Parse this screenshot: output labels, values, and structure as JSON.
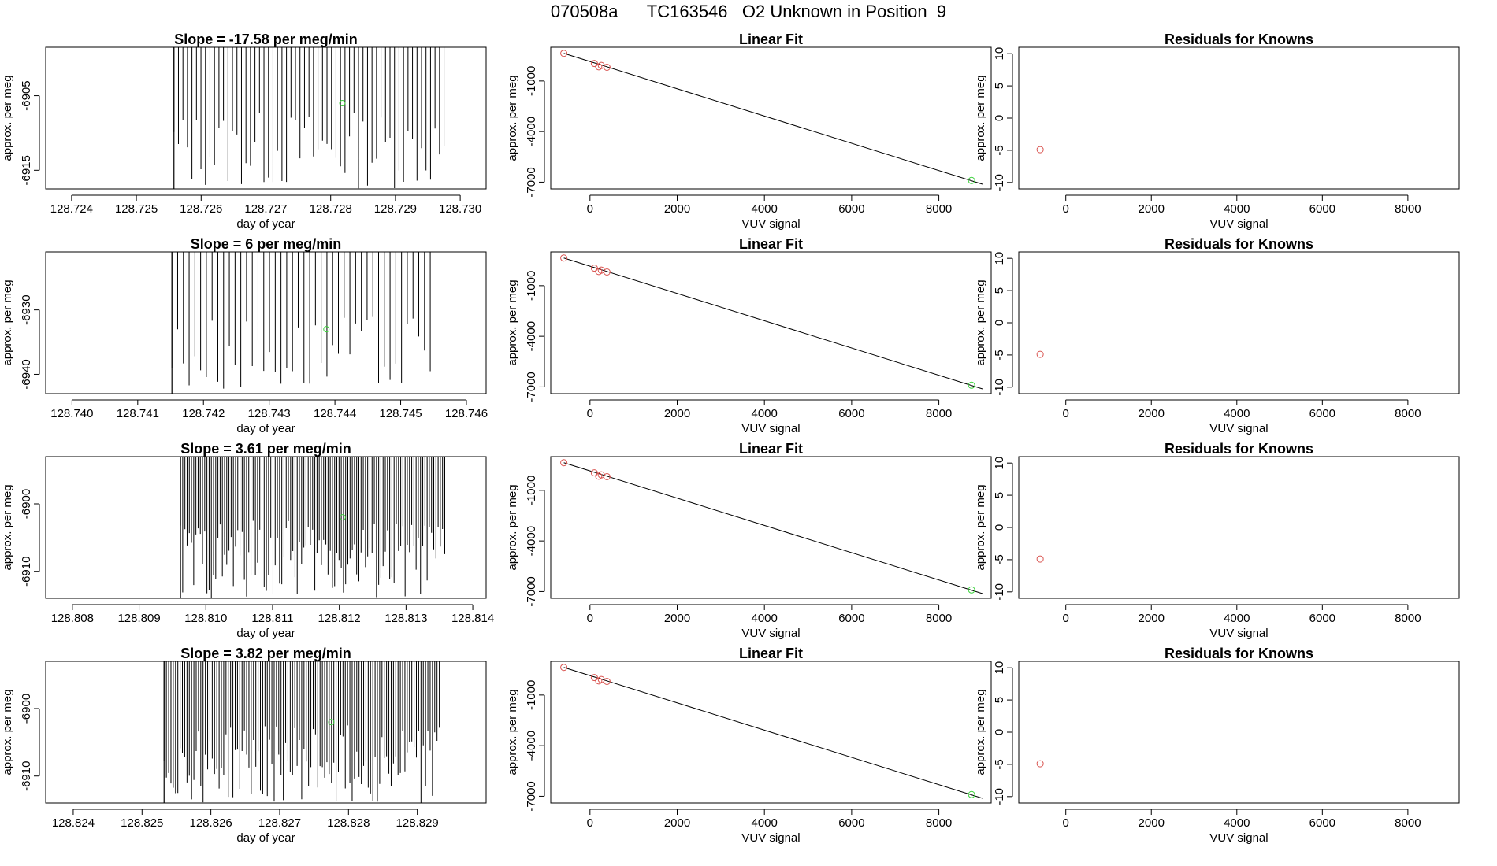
{
  "page": {
    "title": "070508a      TC163546   O2 Unknown in Position  9"
  },
  "colors": {
    "axis": "#000000",
    "trace": "#000000",
    "known_points": "#d9534f",
    "unknown_point": "#3cd23c"
  },
  "chart_data": [
    {
      "type": "line",
      "row": 0,
      "col": 0,
      "title": "Slope =  -17.58  per meg/min",
      "xlabel": "day of year",
      "ylabel": "approx. per meg",
      "xlim": [
        128.7236,
        128.7304
      ],
      "ylim": [
        -6917.5,
        -6898.5
      ],
      "xticks": [
        128.724,
        128.725,
        128.726,
        128.727,
        128.728,
        128.729,
        128.73
      ],
      "xtick_labels": [
        "128.724",
        "128.725",
        "128.726",
        "128.727",
        "128.728",
        "128.729",
        "128.730"
      ],
      "yticks": [
        -6905,
        -6915
      ],
      "ytick_labels": [
        "-6905",
        "-6915"
      ],
      "trace": {
        "x_start": 128.72558,
        "x_end": 128.72975,
        "segments": [
          [
            128.72558,
            128.72558
          ],
          [
            128.72563,
            128.72563
          ],
          [
            128.72608,
            128.72608
          ],
          [
            128.72622,
            128.72622
          ],
          [
            128.72636,
            128.72636
          ],
          [
            128.72652,
            128.72652
          ],
          [
            128.72666,
            128.72666
          ],
          [
            128.72681,
            128.72681
          ],
          [
            128.72695,
            128.72695
          ],
          [
            128.7271,
            128.7271
          ],
          [
            128.72725,
            128.72725
          ],
          [
            128.7274,
            128.7274
          ],
          [
            128.72754,
            128.72754
          ],
          [
            128.72768,
            128.72768
          ],
          [
            128.72783,
            128.72783
          ],
          [
            128.72797,
            128.72797
          ],
          [
            128.72812,
            128.72812
          ],
          [
            128.72827,
            128.72827
          ],
          [
            128.72841,
            128.72841
          ],
          [
            128.72856,
            128.72856
          ],
          [
            128.7287,
            128.7287
          ],
          [
            128.72885,
            128.72885
          ],
          [
            128.729,
            128.729
          ],
          [
            128.72914,
            128.72914
          ],
          [
            128.72929,
            128.72929
          ],
          [
            128.72944,
            128.72944
          ],
          [
            128.72958,
            128.72958
          ],
          [
            128.72972,
            128.72972
          ]
        ]
      },
      "unknown_point": {
        "x": 128.72818,
        "y": -6906.0
      }
    },
    {
      "type": "scatter",
      "row": 0,
      "col": 1,
      "title": "Linear Fit",
      "xlabel": "VUV signal",
      "ylabel": "approx. per meg",
      "xlim": [
        -900,
        9200
      ],
      "ylim": [
        -7400,
        1000
      ],
      "xticks": [
        0,
        2000,
        4000,
        6000,
        8000
      ],
      "xtick_labels": [
        "0",
        "2000",
        "4000",
        "6000",
        "8000"
      ],
      "yticks": [
        -1000,
        -4000,
        -7000
      ],
      "ytick_labels": [
        "-1000",
        "-4000",
        "-7000"
      ],
      "fit_line": {
        "x": [
          -600,
          9000
        ],
        "y": [
          640,
          -7120
        ]
      },
      "known_points": {
        "x": [
          -600,
          100,
          200,
          260,
          390
        ],
        "y": [
          640,
          40,
          -160,
          -80,
          -190
        ]
      },
      "unknown_point": {
        "x": 8750,
        "y": -6900
      }
    },
    {
      "type": "scatter",
      "row": 0,
      "col": 2,
      "title": "Residuals for Knowns",
      "xlabel": "VUV signal",
      "ylabel": "approx. per meg",
      "xlim": [
        -1100,
        9200
      ],
      "ylim": [
        -11,
        11
      ],
      "xticks": [
        0,
        2000,
        4000,
        6000,
        8000
      ],
      "xtick_labels": [
        "0",
        "2000",
        "4000",
        "6000",
        "8000"
      ],
      "yticks": [
        10,
        5,
        0,
        -5,
        -10
      ],
      "ytick_labels": [
        "10",
        "5",
        "0",
        "-5",
        "-10"
      ],
      "known_points": {
        "x": [
          -600
        ],
        "y": [
          -4.9
        ]
      }
    },
    {
      "type": "line",
      "row": 1,
      "col": 0,
      "title": "Slope =  6  per meg/min",
      "xlabel": "day of year",
      "ylabel": "approx. per meg",
      "xlim": [
        128.7396,
        128.7463
      ],
      "ylim": [
        -6943,
        -6921
      ],
      "xticks": [
        128.74,
        128.741,
        128.742,
        128.743,
        128.744,
        128.745,
        128.746
      ],
      "xtick_labels": [
        "128.740",
        "128.741",
        "128.742",
        "128.743",
        "128.744",
        "128.745",
        "128.746"
      ],
      "yticks": [
        -6930,
        -6940
      ],
      "ytick_labels": [
        "-6930",
        "-6940"
      ],
      "trace": {
        "x_start": 128.74152,
        "x_end": 128.74545
      },
      "unknown_point": {
        "x": 128.74387,
        "y": -6933.0
      }
    },
    {
      "type": "scatter",
      "row": 1,
      "col": 1,
      "title": "Linear Fit",
      "xlabel": "VUV signal",
      "ylabel": "approx. per meg",
      "xlim": [
        -900,
        9200
      ],
      "ylim": [
        -7400,
        1000
      ],
      "xticks": [
        0,
        2000,
        4000,
        6000,
        8000
      ],
      "xtick_labels": [
        "0",
        "2000",
        "4000",
        "6000",
        "8000"
      ],
      "yticks": [
        -1000,
        -4000,
        -7000
      ],
      "ytick_labels": [
        "-1000",
        "-4000",
        "-7000"
      ],
      "fit_line": {
        "x": [
          -600,
          9000
        ],
        "y": [
          640,
          -7120
        ]
      },
      "known_points": {
        "x": [
          -600,
          100,
          200,
          260,
          390
        ],
        "y": [
          640,
          40,
          -160,
          -80,
          -190
        ]
      },
      "unknown_point": {
        "x": 8750,
        "y": -6900
      }
    },
    {
      "type": "scatter",
      "row": 1,
      "col": 2,
      "title": "Residuals for Knowns",
      "xlabel": "VUV signal",
      "ylabel": "approx. per meg",
      "xlim": [
        -1100,
        9200
      ],
      "ylim": [
        -11,
        11
      ],
      "xticks": [
        0,
        2000,
        4000,
        6000,
        8000
      ],
      "xtick_labels": [
        "0",
        "2000",
        "4000",
        "6000",
        "8000"
      ],
      "yticks": [
        10,
        5,
        0,
        -5,
        -10
      ],
      "ytick_labels": [
        "10",
        "5",
        "0",
        "-5",
        "-10"
      ],
      "known_points": {
        "x": [
          -600
        ],
        "y": [
          -4.9
        ]
      }
    },
    {
      "type": "line",
      "row": 2,
      "col": 0,
      "title": "Slope =  3.61  per meg/min",
      "xlabel": "day of year",
      "ylabel": "approx. per meg",
      "xlim": [
        128.8076,
        128.8142
      ],
      "ylim": [
        -6914,
        -6893
      ],
      "xticks": [
        128.808,
        128.809,
        128.81,
        128.811,
        128.812,
        128.813,
        128.814
      ],
      "xtick_labels": [
        "128.808",
        "128.809",
        "128.810",
        "128.811",
        "128.812",
        "128.813",
        "128.814"
      ],
      "yticks": [
        -6900,
        -6910
      ],
      "ytick_labels": [
        "-6900",
        "-6910"
      ],
      "trace": {
        "x_start": 128.80962,
        "x_end": 128.81358
      },
      "unknown_point": {
        "x": 128.81205,
        "y": -6902.0
      }
    },
    {
      "type": "scatter",
      "row": 2,
      "col": 1,
      "title": "Linear Fit",
      "xlabel": "VUV signal",
      "ylabel": "approx. per meg",
      "xlim": [
        -900,
        9200
      ],
      "ylim": [
        -7400,
        1000
      ],
      "xticks": [
        0,
        2000,
        4000,
        6000,
        8000
      ],
      "xtick_labels": [
        "0",
        "2000",
        "4000",
        "6000",
        "8000"
      ],
      "yticks": [
        -1000,
        -4000,
        -7000
      ],
      "ytick_labels": [
        "-1000",
        "-4000",
        "-7000"
      ],
      "fit_line": {
        "x": [
          -600,
          9000
        ],
        "y": [
          640,
          -7120
        ]
      },
      "known_points": {
        "x": [
          -600,
          100,
          200,
          260,
          390
        ],
        "y": [
          640,
          40,
          -160,
          -80,
          -190
        ]
      },
      "unknown_point": {
        "x": 8750,
        "y": -6900
      }
    },
    {
      "type": "scatter",
      "row": 2,
      "col": 2,
      "title": "Residuals for Knowns",
      "xlabel": "VUV signal",
      "ylabel": "approx. per meg",
      "xlim": [
        -1100,
        9200
      ],
      "ylim": [
        -11,
        11
      ],
      "xticks": [
        0,
        2000,
        4000,
        6000,
        8000
      ],
      "xtick_labels": [
        "0",
        "2000",
        "4000",
        "6000",
        "8000"
      ],
      "yticks": [
        10,
        5,
        0,
        -5,
        -10
      ],
      "ytick_labels": [
        "10",
        "5",
        "0",
        "-5",
        "-10"
      ],
      "known_points": {
        "x": [
          -600
        ],
        "y": [
          -4.9
        ]
      }
    },
    {
      "type": "line",
      "row": 3,
      "col": 0,
      "title": "Slope =  3.82  per meg/min",
      "xlabel": "day of year",
      "ylabel": "approx. per meg",
      "xlim": [
        128.8236,
        128.83
      ],
      "ylim": [
        -6914,
        -6893
      ],
      "xticks": [
        128.824,
        128.825,
        128.826,
        128.827,
        128.828,
        128.829
      ],
      "xtick_labels": [
        "128.824",
        "128.825",
        "128.826",
        "128.827",
        "128.828",
        "128.829"
      ],
      "yticks": [
        -6900,
        -6910
      ],
      "ytick_labels": [
        "-6900",
        "-6910"
      ],
      "trace": {
        "x_start": 128.82532,
        "x_end": 128.82932
      },
      "unknown_point": {
        "x": 128.82775,
        "y": -6902.0
      }
    },
    {
      "type": "scatter",
      "row": 3,
      "col": 1,
      "title": "Linear Fit",
      "xlabel": "VUV signal",
      "ylabel": "approx. per meg",
      "xlim": [
        -900,
        9200
      ],
      "ylim": [
        -7400,
        1000
      ],
      "xticks": [
        0,
        2000,
        4000,
        6000,
        8000
      ],
      "xtick_labels": [
        "0",
        "2000",
        "4000",
        "6000",
        "8000"
      ],
      "yticks": [
        -1000,
        -4000,
        -7000
      ],
      "ytick_labels": [
        "-1000",
        "-4000",
        "-7000"
      ],
      "fit_line": {
        "x": [
          -600,
          9000
        ],
        "y": [
          640,
          -7120
        ]
      },
      "known_points": {
        "x": [
          -600,
          100,
          200,
          260,
          390
        ],
        "y": [
          640,
          40,
          -160,
          -80,
          -190
        ]
      },
      "unknown_point": {
        "x": 8750,
        "y": -6900
      }
    },
    {
      "type": "scatter",
      "row": 3,
      "col": 2,
      "title": "Residuals for Knowns",
      "xlabel": "VUV signal",
      "ylabel": "approx. per meg",
      "xlim": [
        -1100,
        9200
      ],
      "ylim": [
        -11,
        11
      ],
      "xticks": [
        0,
        2000,
        4000,
        6000,
        8000
      ],
      "xtick_labels": [
        "0",
        "2000",
        "4000",
        "6000",
        "8000"
      ],
      "yticks": [
        10,
        5,
        0,
        -5,
        -10
      ],
      "ytick_labels": [
        "10",
        "5",
        "0",
        "-5",
        "-10"
      ],
      "known_points": {
        "x": [
          -600
        ],
        "y": [
          -4.9
        ]
      }
    }
  ]
}
